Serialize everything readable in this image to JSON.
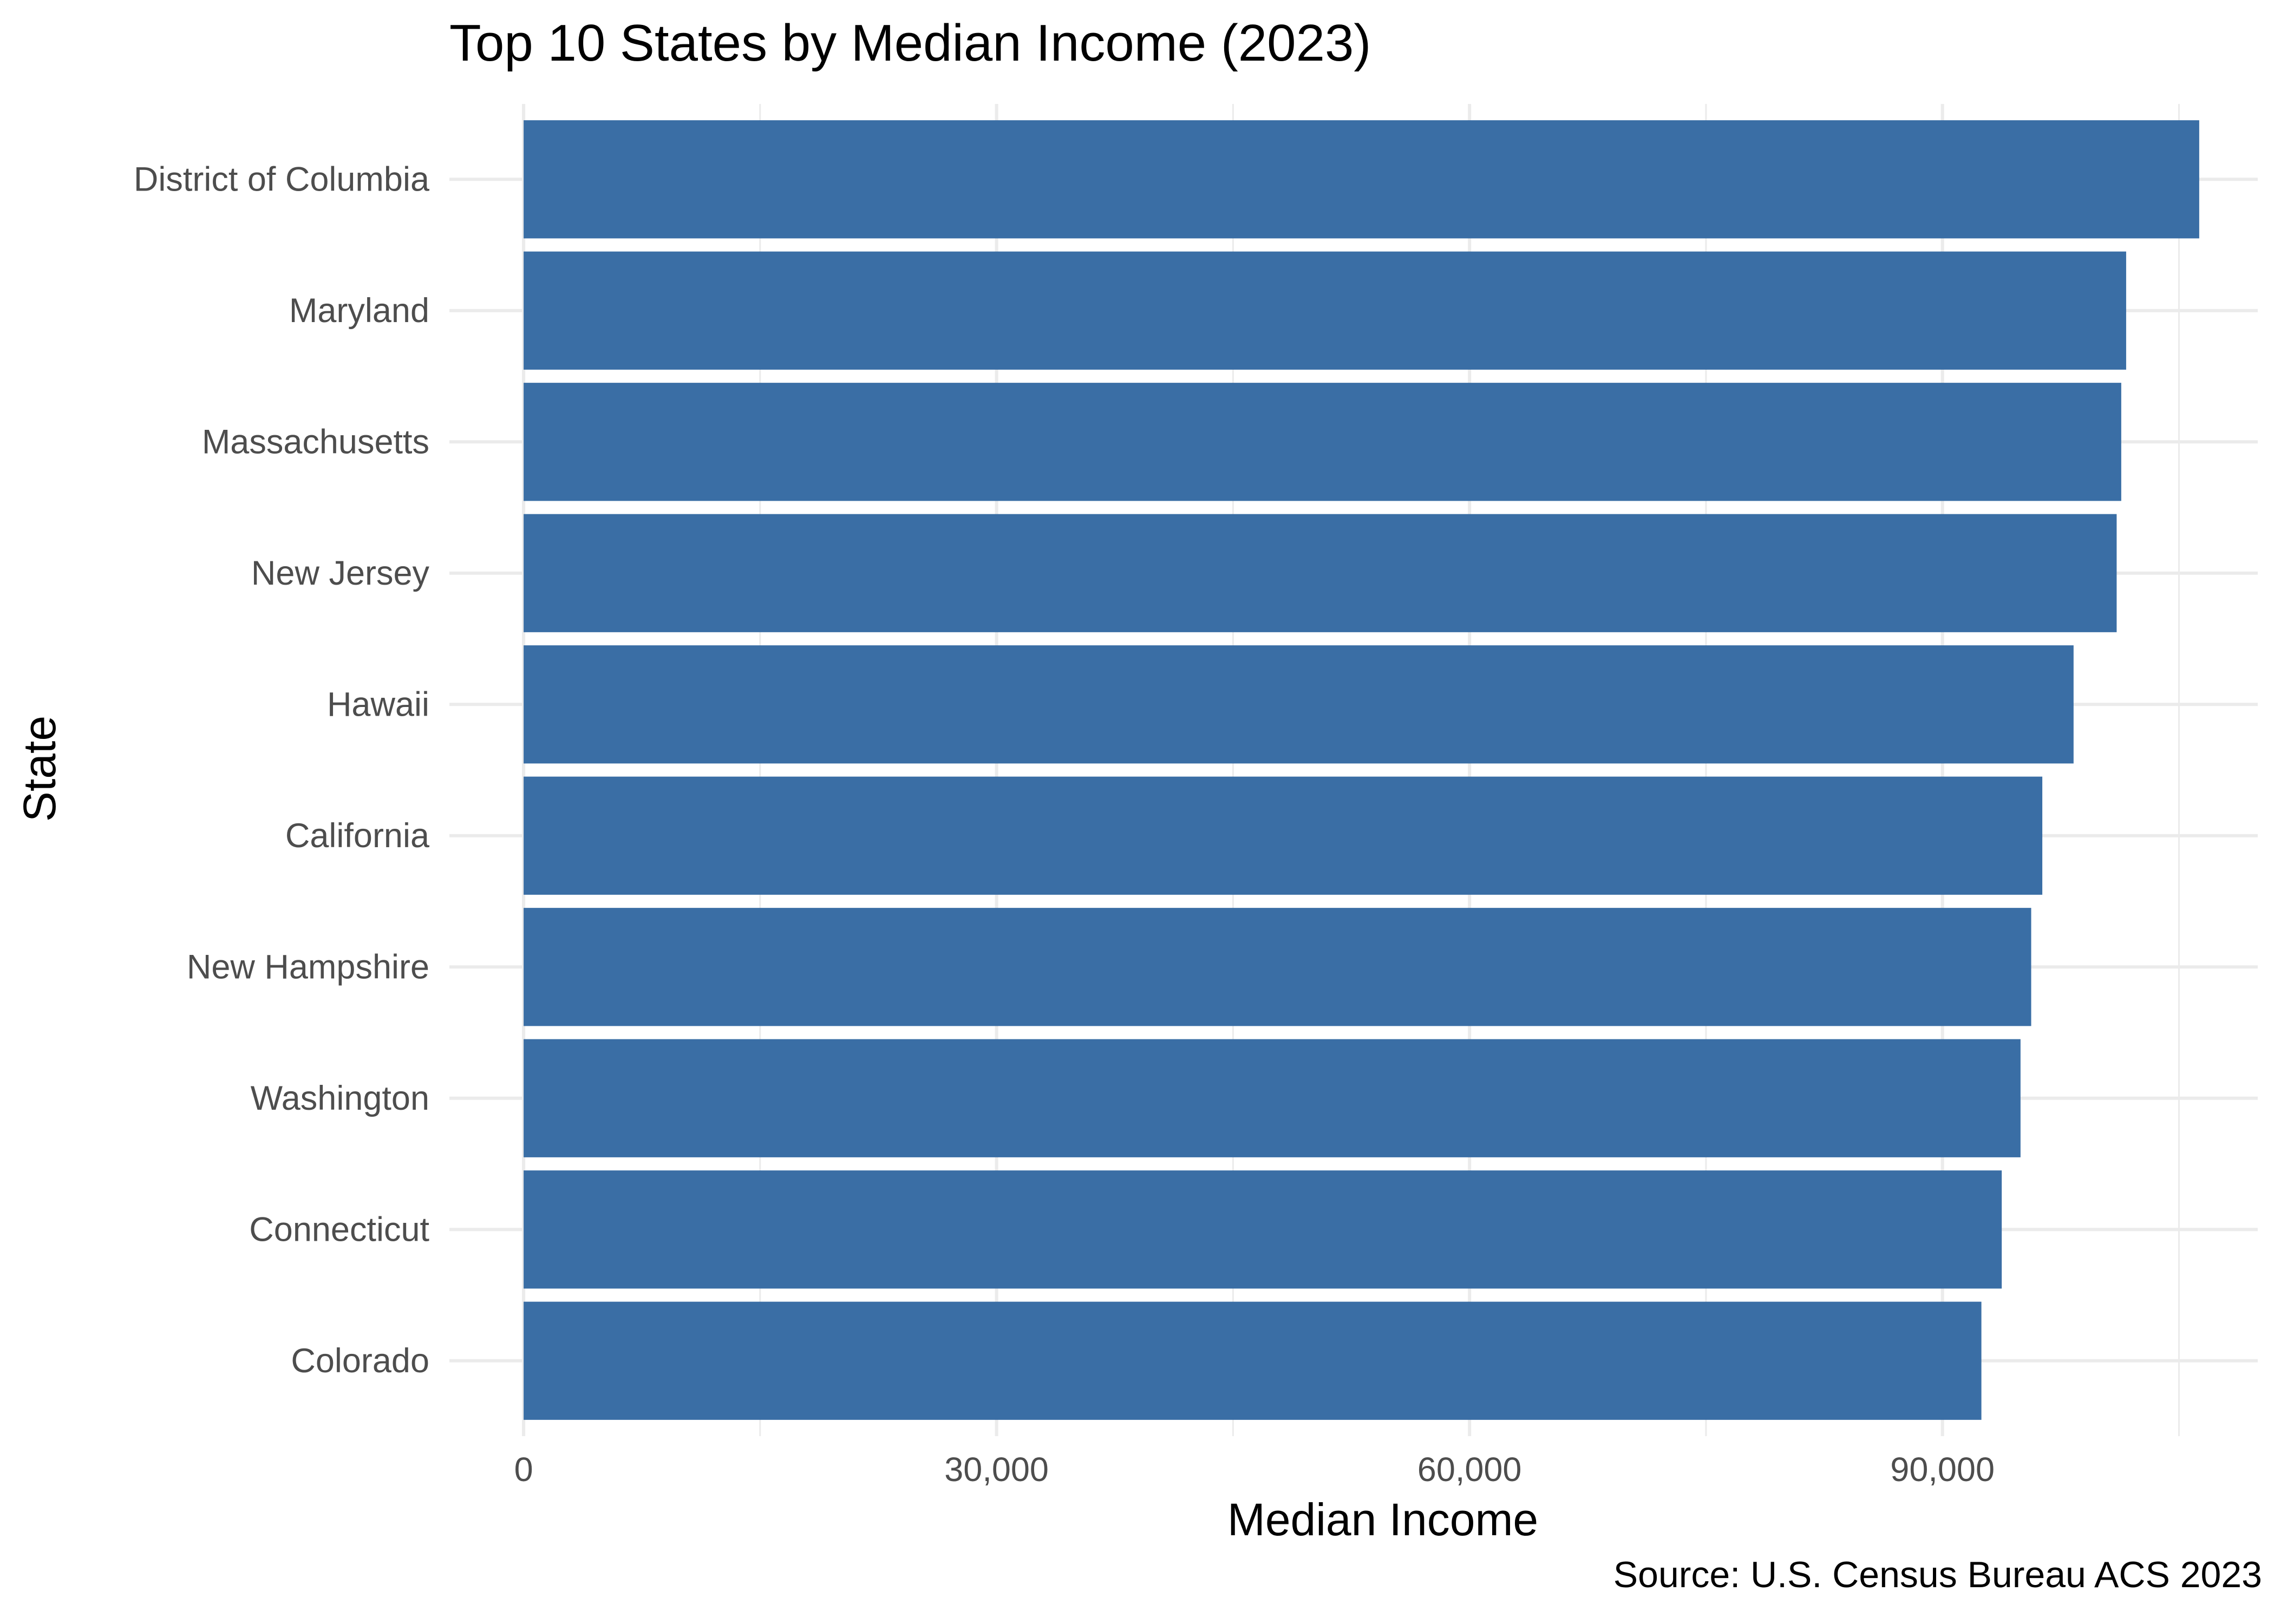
{
  "chart_data": {
    "type": "bar",
    "orientation": "horizontal",
    "title": "Top 10 States by Median Income (2023)",
    "xlabel": "Median Income",
    "ylabel": "State",
    "caption": "Source: U.S. Census Bureau ACS 2023",
    "categories": [
      "District of Columbia",
      "Maryland",
      "Massachusetts",
      "New Jersey",
      "Hawaii",
      "California",
      "New Hampshire",
      "Washington",
      "Connecticut",
      "Colorado"
    ],
    "values": [
      106287,
      101652,
      101341,
      101050,
      98317,
      96334,
      95628,
      94952,
      93760,
      92470
    ],
    "xlim": [
      -1000,
      110000
    ],
    "x_ticks": [
      0,
      30000,
      60000,
      90000
    ],
    "x_tick_labels": [
      "0",
      "30,000",
      "60,000",
      "90,000"
    ],
    "grid": true,
    "legend": "none",
    "bar_color": "#3A6EA5",
    "grid_color": "#EBEBEB"
  }
}
